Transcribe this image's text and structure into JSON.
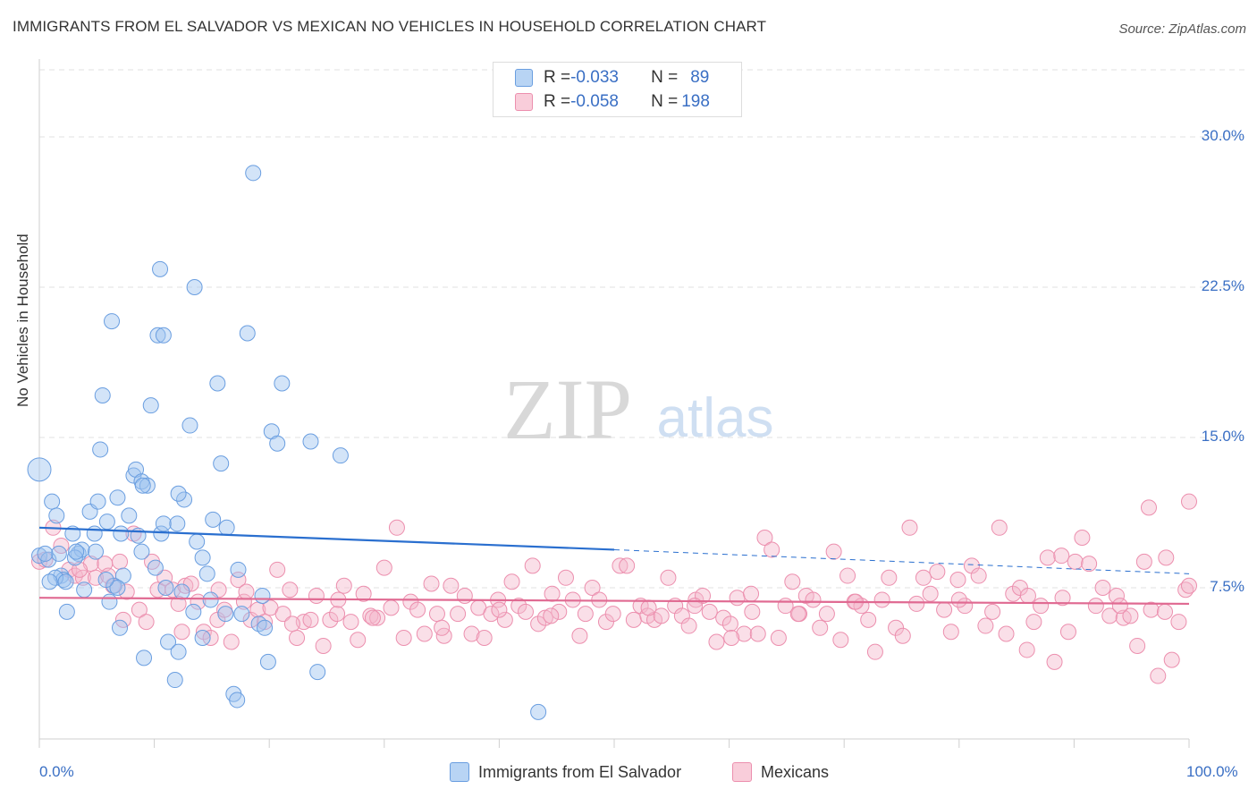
{
  "title": "IMMIGRANTS FROM EL SALVADOR VS MEXICAN NO VEHICLES IN HOUSEHOLD CORRELATION CHART",
  "source": "Source: ZipAtlas.com",
  "watermark": {
    "zip": "ZIP",
    "atlas": "atlas"
  },
  "colors": {
    "blue": "#9dc3ef",
    "blue_stroke": "#6a9ee0",
    "blue_line": "#2a6fcf",
    "pink": "#f5b8cb",
    "pink_stroke": "#ec8fae",
    "pink_line": "#e06a92",
    "axis_text": "#3a6fc4"
  },
  "legend": {
    "rows": [
      {
        "r_label": "R = ",
        "r_value": "-0.033",
        "n_label": "N = ",
        "n_value": "89"
      },
      {
        "r_label": "R = ",
        "r_value": "-0.058",
        "n_label": "N = ",
        "n_value": "198"
      }
    ]
  },
  "bottom_legend": [
    "Immigrants from El Salvador",
    "Mexicans"
  ],
  "chart_data": {
    "type": "scatter",
    "title": "IMMIGRANTS FROM EL SALVADOR VS MEXICAN NO VEHICLES IN HOUSEHOLD CORRELATION CHART",
    "xlabel": "",
    "ylabel": "No Vehicles in Household",
    "xlim": [
      0,
      100
    ],
    "ylim": [
      0,
      32
    ],
    "x_tick_labels": [
      "0.0%",
      "100.0%"
    ],
    "y_ticks": [
      7.5,
      15.0,
      22.5,
      30.0
    ],
    "y_tick_labels": [
      "7.5%",
      "15.0%",
      "22.5%",
      "30.0%"
    ],
    "grid": true,
    "legend_position": "top-center",
    "series": [
      {
        "name": "Immigrants from El Salvador",
        "r": -0.033,
        "n": 89,
        "trend": {
          "x0": 0,
          "y0": 10.5,
          "x1": 50,
          "y1": 9.4,
          "dashed_to_x": 100,
          "dashed_y1": 8.2
        },
        "points": [
          [
            0,
            13.4
          ],
          [
            0,
            9.1
          ],
          [
            0.8,
            8.9
          ],
          [
            1.1,
            11.8
          ],
          [
            1.5,
            11.1
          ],
          [
            1.7,
            9.2
          ],
          [
            1.9,
            8.1
          ],
          [
            2.1,
            7.9
          ],
          [
            2.4,
            6.3
          ],
          [
            2.9,
            10.2
          ],
          [
            3.4,
            9.2
          ],
          [
            3.7,
            9.4
          ],
          [
            3.9,
            7.4
          ],
          [
            4.4,
            11.3
          ],
          [
            4.9,
            9.3
          ],
          [
            5.1,
            11.8
          ],
          [
            5.3,
            14.4
          ],
          [
            5.5,
            17.1
          ],
          [
            5.9,
            10.8
          ],
          [
            6.3,
            20.8
          ],
          [
            6.8,
            12.0
          ],
          [
            7.1,
            10.2
          ],
          [
            7.3,
            8.1
          ],
          [
            7.8,
            11.1
          ],
          [
            8.2,
            13.1
          ],
          [
            8.4,
            13.4
          ],
          [
            8.9,
            12.8
          ],
          [
            9.4,
            12.6
          ],
          [
            9.7,
            16.6
          ],
          [
            10.3,
            20.1
          ],
          [
            10.6,
            10.2
          ],
          [
            11.2,
            4.8
          ],
          [
            11.8,
            2.9
          ],
          [
            12.1,
            4.3
          ],
          [
            12.6,
            11.9
          ],
          [
            13.1,
            15.6
          ],
          [
            13.5,
            22.5
          ],
          [
            14.2,
            5.0
          ],
          [
            14.6,
            8.2
          ],
          [
            15.1,
            10.9
          ],
          [
            15.5,
            17.7
          ],
          [
            15.8,
            13.7
          ],
          [
            16.3,
            10.5
          ],
          [
            16.9,
            2.2
          ],
          [
            17.3,
            8.4
          ],
          [
            17.6,
            6.2
          ],
          [
            18.1,
            20.2
          ],
          [
            18.6,
            28.2
          ],
          [
            19.1,
            5.7
          ],
          [
            19.4,
            7.1
          ],
          [
            19.9,
            3.8
          ],
          [
            20.2,
            15.3
          ],
          [
            20.7,
            14.7
          ],
          [
            21.1,
            17.7
          ],
          [
            23.6,
            14.8
          ],
          [
            24.2,
            3.3
          ],
          [
            26.2,
            14.1
          ],
          [
            43.4,
            1.3
          ],
          [
            6.5,
            7.6
          ],
          [
            7.0,
            5.5
          ],
          [
            9.1,
            4.0
          ],
          [
            10.1,
            8.5
          ],
          [
            11.0,
            7.5
          ],
          [
            12.4,
            7.3
          ],
          [
            13.4,
            6.3
          ],
          [
            14.9,
            6.9
          ],
          [
            16.2,
            6.2
          ],
          [
            17.2,
            1.9
          ],
          [
            19.6,
            5.5
          ],
          [
            6.8,
            7.5
          ],
          [
            10.5,
            23.4
          ],
          [
            8.9,
            9.3
          ],
          [
            1.4,
            8.0
          ],
          [
            3.1,
            9.0
          ],
          [
            6.1,
            6.8
          ],
          [
            4.8,
            10.2
          ],
          [
            9.0,
            12.6
          ],
          [
            10.8,
            10.7
          ],
          [
            12.0,
            10.7
          ],
          [
            13.7,
            9.8
          ],
          [
            14.2,
            9.0
          ],
          [
            0.5,
            9.2
          ],
          [
            0.9,
            7.8
          ],
          [
            3.2,
            9.3
          ],
          [
            5.8,
            7.9
          ],
          [
            2.3,
            7.8
          ],
          [
            8.6,
            10.1
          ],
          [
            10.8,
            20.1
          ],
          [
            12.1,
            12.2
          ]
        ]
      },
      {
        "name": "Mexicans",
        "r": -0.058,
        "n": 198,
        "trend": {
          "x0": 0,
          "y0": 7.0,
          "x1": 100,
          "y1": 6.7
        },
        "points": [
          [
            0,
            8.8
          ],
          [
            0.5,
            8.9
          ],
          [
            1.2,
            10.5
          ],
          [
            1.9,
            9.6
          ],
          [
            2.6,
            8.4
          ],
          [
            3.1,
            8.1
          ],
          [
            3.8,
            8.0
          ],
          [
            4.5,
            8.7
          ],
          [
            4.9,
            8.0
          ],
          [
            5.7,
            8.7
          ],
          [
            6.4,
            7.6
          ],
          [
            7.0,
            8.8
          ],
          [
            7.6,
            7.3
          ],
          [
            8.2,
            10.2
          ],
          [
            8.7,
            6.4
          ],
          [
            9.3,
            5.8
          ],
          [
            9.8,
            8.8
          ],
          [
            10.3,
            7.4
          ],
          [
            10.9,
            8.0
          ],
          [
            11.6,
            7.4
          ],
          [
            12.1,
            6.7
          ],
          [
            12.7,
            7.6
          ],
          [
            13.2,
            7.7
          ],
          [
            13.8,
            6.8
          ],
          [
            14.3,
            5.3
          ],
          [
            14.9,
            5.0
          ],
          [
            15.5,
            5.9
          ],
          [
            16.1,
            6.4
          ],
          [
            16.7,
            4.8
          ],
          [
            17.3,
            7.9
          ],
          [
            17.8,
            6.8
          ],
          [
            18.4,
            5.9
          ],
          [
            19.0,
            6.4
          ],
          [
            19.6,
            5.8
          ],
          [
            20.1,
            6.5
          ],
          [
            20.7,
            8.4
          ],
          [
            21.2,
            6.2
          ],
          [
            21.8,
            7.4
          ],
          [
            22.4,
            5.0
          ],
          [
            23.0,
            5.8
          ],
          [
            23.6,
            5.9
          ],
          [
            24.1,
            7.1
          ],
          [
            24.7,
            4.6
          ],
          [
            25.3,
            5.9
          ],
          [
            25.9,
            6.2
          ],
          [
            26.5,
            7.6
          ],
          [
            27.1,
            5.8
          ],
          [
            27.7,
            4.9
          ],
          [
            28.2,
            7.2
          ],
          [
            28.8,
            6.1
          ],
          [
            29.4,
            6.0
          ],
          [
            30.0,
            8.5
          ],
          [
            30.6,
            6.5
          ],
          [
            31.1,
            10.5
          ],
          [
            31.7,
            5.0
          ],
          [
            32.3,
            6.8
          ],
          [
            32.9,
            6.4
          ],
          [
            33.5,
            5.2
          ],
          [
            34.1,
            7.7
          ],
          [
            34.6,
            6.2
          ],
          [
            35.2,
            5.1
          ],
          [
            35.8,
            7.6
          ],
          [
            36.4,
            6.2
          ],
          [
            37.0,
            7.1
          ],
          [
            37.6,
            5.2
          ],
          [
            38.2,
            6.5
          ],
          [
            38.7,
            5.0
          ],
          [
            39.3,
            6.2
          ],
          [
            39.9,
            6.9
          ],
          [
            40.5,
            5.9
          ],
          [
            41.1,
            7.8
          ],
          [
            41.7,
            6.6
          ],
          [
            42.3,
            6.3
          ],
          [
            42.9,
            8.6
          ],
          [
            43.4,
            5.7
          ],
          [
            44.0,
            6.0
          ],
          [
            44.6,
            7.2
          ],
          [
            45.2,
            6.3
          ],
          [
            45.8,
            8.0
          ],
          [
            46.4,
            6.9
          ],
          [
            47.0,
            5.1
          ],
          [
            47.5,
            6.2
          ],
          [
            48.1,
            7.5
          ],
          [
            48.7,
            6.9
          ],
          [
            49.3,
            5.8
          ],
          [
            49.9,
            6.2
          ],
          [
            50.5,
            8.6
          ],
          [
            51.1,
            8.6
          ],
          [
            51.7,
            5.9
          ],
          [
            52.3,
            6.6
          ],
          [
            52.9,
            6.1
          ],
          [
            53.5,
            5.9
          ],
          [
            54.1,
            6.1
          ],
          [
            54.7,
            8.0
          ],
          [
            55.3,
            6.6
          ],
          [
            55.9,
            6.1
          ],
          [
            56.5,
            5.6
          ],
          [
            57.1,
            6.9
          ],
          [
            57.7,
            7.1
          ],
          [
            58.3,
            6.3
          ],
          [
            58.9,
            4.8
          ],
          [
            59.5,
            6.0
          ],
          [
            60.1,
            5.7
          ],
          [
            60.7,
            7.0
          ],
          [
            61.3,
            5.2
          ],
          [
            61.9,
            7.2
          ],
          [
            62.5,
            5.2
          ],
          [
            63.1,
            10.0
          ],
          [
            63.7,
            9.4
          ],
          [
            64.3,
            5.0
          ],
          [
            64.9,
            6.6
          ],
          [
            65.5,
            7.8
          ],
          [
            66.1,
            6.2
          ],
          [
            66.7,
            7.1
          ],
          [
            67.3,
            6.9
          ],
          [
            67.9,
            5.5
          ],
          [
            68.5,
            6.2
          ],
          [
            69.1,
            9.3
          ],
          [
            69.7,
            4.9
          ],
          [
            70.3,
            8.1
          ],
          [
            70.9,
            6.8
          ],
          [
            71.5,
            6.6
          ],
          [
            72.1,
            5.9
          ],
          [
            72.7,
            4.3
          ],
          [
            73.3,
            6.9
          ],
          [
            73.9,
            8.0
          ],
          [
            74.5,
            5.5
          ],
          [
            75.1,
            5.1
          ],
          [
            75.7,
            10.5
          ],
          [
            76.3,
            6.7
          ],
          [
            76.9,
            8.0
          ],
          [
            77.5,
            7.2
          ],
          [
            78.1,
            8.3
          ],
          [
            78.7,
            6.4
          ],
          [
            79.3,
            5.3
          ],
          [
            79.9,
            7.9
          ],
          [
            80.5,
            6.6
          ],
          [
            81.1,
            8.6
          ],
          [
            81.7,
            8.1
          ],
          [
            82.3,
            5.6
          ],
          [
            82.9,
            6.3
          ],
          [
            83.5,
            10.5
          ],
          [
            84.1,
            5.2
          ],
          [
            84.7,
            7.2
          ],
          [
            85.3,
            7.5
          ],
          [
            85.9,
            4.4
          ],
          [
            86.5,
            5.8
          ],
          [
            87.1,
            6.6
          ],
          [
            87.7,
            9.0
          ],
          [
            88.3,
            3.8
          ],
          [
            88.9,
            9.1
          ],
          [
            89.5,
            5.3
          ],
          [
            90.1,
            8.8
          ],
          [
            90.7,
            10.0
          ],
          [
            91.3,
            8.7
          ],
          [
            91.9,
            6.6
          ],
          [
            92.5,
            7.5
          ],
          [
            93.1,
            6.1
          ],
          [
            93.7,
            7.1
          ],
          [
            94.3,
            6.0
          ],
          [
            94.9,
            6.1
          ],
          [
            95.5,
            4.6
          ],
          [
            96.1,
            8.8
          ],
          [
            96.7,
            6.4
          ],
          [
            97.3,
            3.1
          ],
          [
            97.9,
            6.3
          ],
          [
            98.5,
            3.9
          ],
          [
            99.1,
            5.8
          ],
          [
            99.7,
            7.4
          ],
          [
            100,
            7.6
          ],
          [
            96.5,
            11.5
          ],
          [
            100,
            11.8
          ],
          [
            98.0,
            9.0
          ],
          [
            60.2,
            5.0
          ],
          [
            12.4,
            5.3
          ],
          [
            7.3,
            5.9
          ],
          [
            15.6,
            7.4
          ],
          [
            22.0,
            5.7
          ],
          [
            29.0,
            6.0
          ],
          [
            35.0,
            5.5
          ],
          [
            44.5,
            6.1
          ],
          [
            53.0,
            6.5
          ],
          [
            62.0,
            6.3
          ],
          [
            71.0,
            6.8
          ],
          [
            80.0,
            6.9
          ],
          [
            89.0,
            7.0
          ],
          [
            94.0,
            6.6
          ],
          [
            3.5,
            8.4
          ],
          [
            6.0,
            8.1
          ],
          [
            18.0,
            7.3
          ],
          [
            26.0,
            6.9
          ],
          [
            40.0,
            6.4
          ],
          [
            57.0,
            6.6
          ],
          [
            66.0,
            6.2
          ],
          [
            86.0,
            7.1
          ]
        ]
      }
    ]
  }
}
